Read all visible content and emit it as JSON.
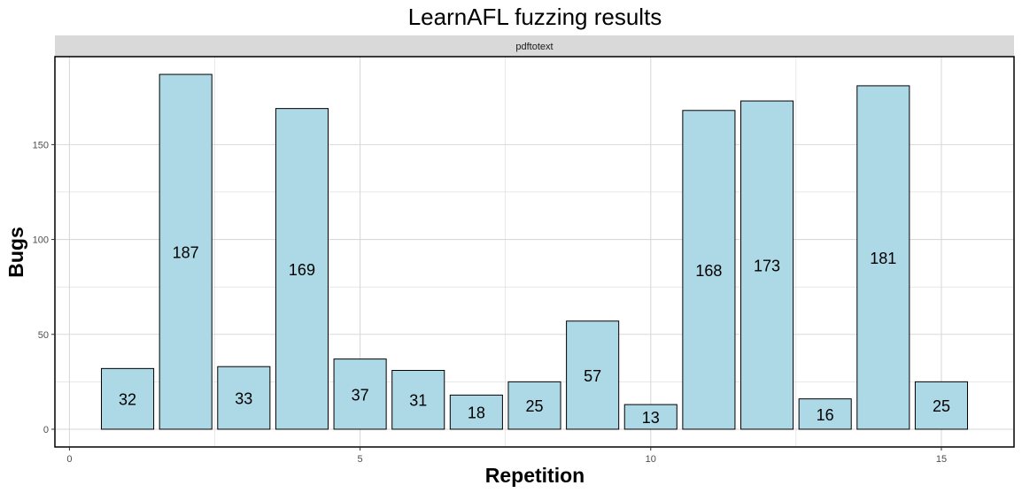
{
  "chart_data": {
    "type": "bar",
    "title": "LearnAFL fuzzing results",
    "facet": "pdftotext",
    "xlabel": "Repetition",
    "ylabel": "Bugs",
    "x": [
      1,
      2,
      3,
      4,
      5,
      6,
      7,
      8,
      9,
      10,
      11,
      12,
      13,
      14,
      15
    ],
    "values": [
      32,
      187,
      33,
      169,
      37,
      31,
      18,
      25,
      57,
      13,
      168,
      173,
      16,
      181,
      25
    ],
    "xlim": [
      -0.25,
      16.25
    ],
    "ylim": [
      -9.35,
      196.35
    ],
    "xticks": [
      0,
      5,
      10,
      15
    ],
    "yticks": [
      0,
      50,
      100,
      150
    ],
    "grid": true,
    "bar_fill": "#add8e6",
    "bar_stroke": "#000000",
    "strip_fill": "#d9d9d9",
    "grid_color": "#d9d9d9"
  }
}
